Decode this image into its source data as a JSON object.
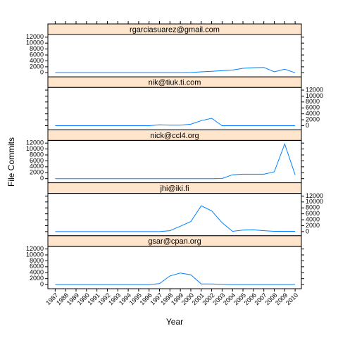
{
  "chart_data": {
    "type": "line",
    "xlabel": "Year",
    "ylabel": "File Commits",
    "color": "#0080ff",
    "x": [
      1987,
      1988,
      1989,
      1990,
      1991,
      1992,
      1993,
      1994,
      1995,
      1996,
      1997,
      1998,
      1999,
      2000,
      2001,
      2002,
      2003,
      2004,
      2005,
      2006,
      2007,
      2008,
      2009,
      2010
    ],
    "xlim": [
      1986.3,
      2010.6
    ],
    "xticks": [
      1987,
      1988,
      1989,
      1990,
      1991,
      1992,
      1993,
      1994,
      1995,
      1996,
      1997,
      1998,
      1999,
      2000,
      2001,
      2002,
      2003,
      2004,
      2005,
      2006,
      2007,
      2008,
      2009,
      2010
    ],
    "ylim": [
      -1400,
      12900
    ],
    "yticks": [
      0,
      2000,
      4000,
      6000,
      8000,
      10000,
      12000
    ],
    "panels": [
      {
        "name": "rgarciasuarez@gmail.com",
        "values": [
          0,
          0,
          0,
          0,
          0,
          0,
          0,
          0,
          0,
          0,
          0,
          0,
          0,
          100,
          300,
          500,
          700,
          900,
          1500,
          1700,
          1800,
          300,
          1200,
          0
        ]
      },
      {
        "name": "nik@tiuk.ti.com",
        "values": [
          0,
          0,
          0,
          0,
          0,
          0,
          0,
          0,
          0,
          0,
          300,
          200,
          200,
          500,
          1700,
          2500,
          0,
          0,
          0,
          0,
          0,
          0,
          0,
          0
        ]
      },
      {
        "name": "nick@ccl4.org",
        "values": [
          0,
          0,
          0,
          0,
          0,
          0,
          0,
          0,
          0,
          0,
          0,
          0,
          0,
          0,
          0,
          0,
          50,
          1300,
          1500,
          1500,
          1500,
          2300,
          11700,
          1300
        ]
      },
      {
        "name": "jhi@iki.fi",
        "values": [
          0,
          0,
          0,
          0,
          0,
          0,
          0,
          0,
          0,
          0,
          0,
          300,
          1800,
          3400,
          8700,
          7000,
          3000,
          100,
          500,
          600,
          300,
          100,
          100,
          100
        ]
      },
      {
        "name": "gsar@cpan.org",
        "values": [
          0,
          0,
          0,
          0,
          0,
          0,
          0,
          0,
          0,
          0,
          300,
          2900,
          3900,
          3300,
          200,
          200,
          100,
          0,
          0,
          0,
          0,
          0,
          0,
          0
        ]
      }
    ]
  }
}
